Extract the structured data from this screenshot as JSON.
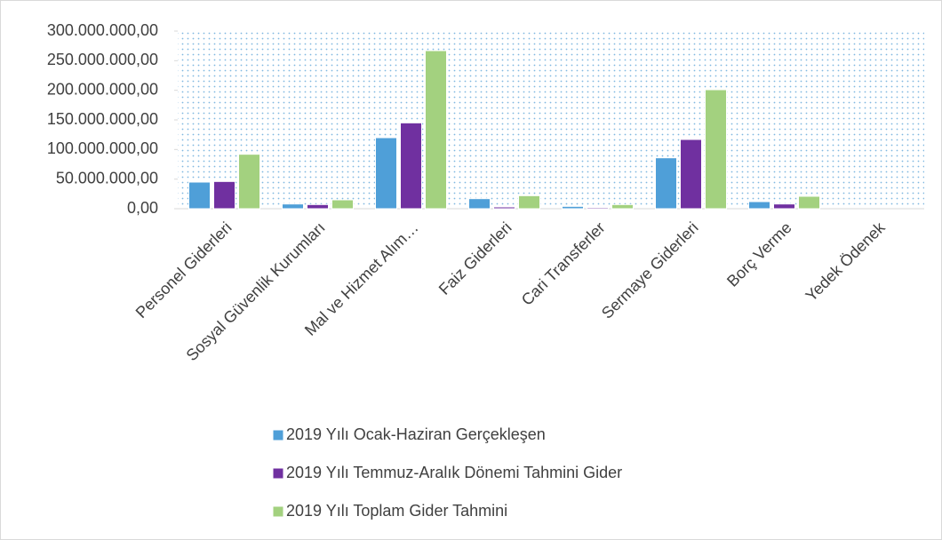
{
  "chart_data": {
    "type": "bar",
    "categories": [
      "Personel Giderleri",
      "Sosyal Güvenlik Kurumları",
      "Mal ve Hizmet Alım…",
      "Faiz Giderleri",
      "Cari Transferler",
      "Sermaye Giderleri",
      "Borç Verme",
      "Yedek Ödenek"
    ],
    "series": [
      {
        "name": "2019 Yılı Ocak-Haziran Gerçekleşen",
        "color": "#4f9fd8",
        "values": [
          45000000,
          8000000,
          120000000,
          17000000,
          4000000,
          86000000,
          12000000,
          0
        ]
      },
      {
        "name": "2019 Yılı Temmuz-Aralık Dönemi Tahmini Gider",
        "color": "#7030a0",
        "values": [
          46000000,
          7000000,
          145000000,
          3000000,
          2000000,
          117000000,
          8000000,
          0
        ]
      },
      {
        "name": "2019 Yılı Toplam Gider Tahmini",
        "color": "#a3d17f",
        "values": [
          92000000,
          15000000,
          267000000,
          22000000,
          7000000,
          201000000,
          21000000,
          0
        ]
      }
    ],
    "ylim": [
      0,
      300000000
    ],
    "yticks": [
      {
        "value": 0,
        "label": "0,00"
      },
      {
        "value": 50000000,
        "label": "50.000.000,00"
      },
      {
        "value": 100000000,
        "label": "100.000.000,00"
      },
      {
        "value": 150000000,
        "label": "150.000.000,00"
      },
      {
        "value": 200000000,
        "label": "200.000.000,00"
      },
      {
        "value": 250000000,
        "label": "250.000.000,00"
      },
      {
        "value": 300000000,
        "label": "300.000.000,00"
      }
    ],
    "grid": true,
    "legend": "bottom"
  }
}
